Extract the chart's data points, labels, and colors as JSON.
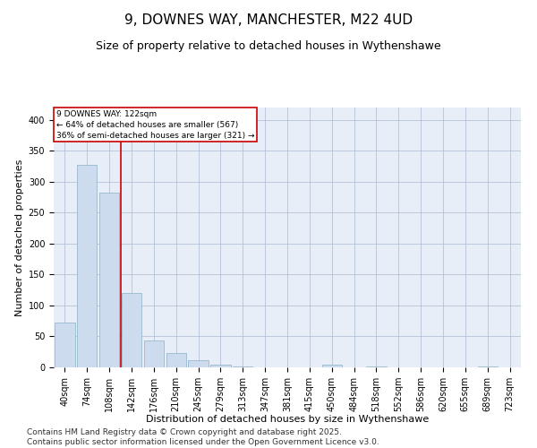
{
  "title1": "9, DOWNES WAY, MANCHESTER, M22 4UD",
  "title2": "Size of property relative to detached houses in Wythenshawe",
  "xlabel": "Distribution of detached houses by size in Wythenshawe",
  "ylabel": "Number of detached properties",
  "categories": [
    "40sqm",
    "74sqm",
    "108sqm",
    "142sqm",
    "176sqm",
    "210sqm",
    "245sqm",
    "279sqm",
    "313sqm",
    "347sqm",
    "381sqm",
    "415sqm",
    "450sqm",
    "484sqm",
    "518sqm",
    "552sqm",
    "586sqm",
    "620sqm",
    "655sqm",
    "689sqm",
    "723sqm"
  ],
  "values": [
    72,
    327,
    283,
    120,
    43,
    23,
    11,
    4,
    1,
    0,
    0,
    0,
    5,
    0,
    1,
    0,
    0,
    0,
    0,
    2,
    0
  ],
  "bar_color": "#ccdcee",
  "bar_edgecolor": "#8aafc8",
  "vline_x": 2.5,
  "vline_color": "#cc0000",
  "annotation_text": "9 DOWNES WAY: 122sqm\n← 64% of detached houses are smaller (567)\n36% of semi-detached houses are larger (321) →",
  "annotation_box_color": "#ffffff",
  "annotation_box_edgecolor": "#cc0000",
  "ylim": [
    0,
    420
  ],
  "yticks": [
    0,
    50,
    100,
    150,
    200,
    250,
    300,
    350,
    400
  ],
  "footer_text": "Contains HM Land Registry data © Crown copyright and database right 2025.\nContains public sector information licensed under the Open Government Licence v3.0.",
  "bg_color": "#e8eef8",
  "title_fontsize": 11,
  "subtitle_fontsize": 9,
  "axis_label_fontsize": 8,
  "tick_fontsize": 7,
  "footer_fontsize": 6.5
}
